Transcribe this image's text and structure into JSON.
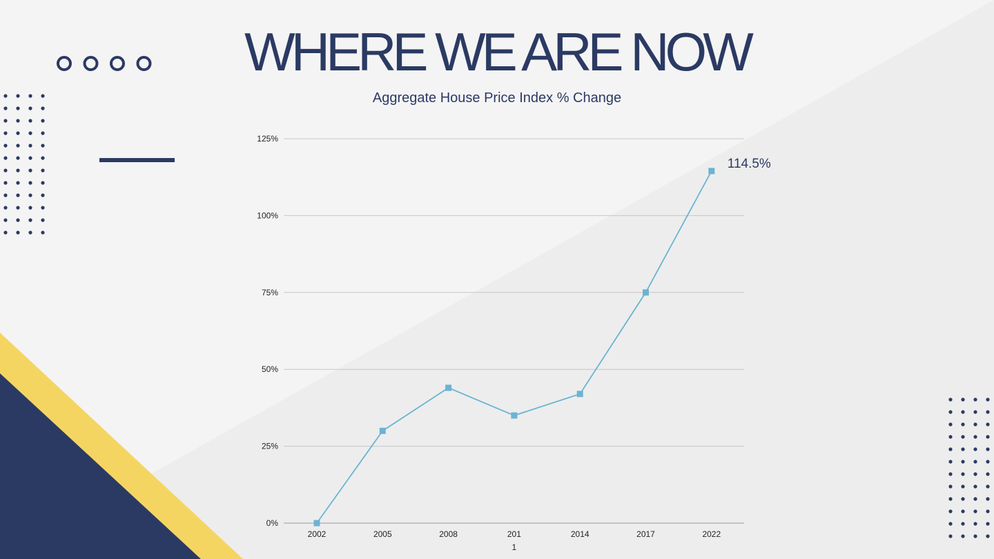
{
  "slide": {
    "title": "WHERE WE ARE NOW"
  },
  "colors": {
    "navy": "#2b3a63",
    "yellow": "#f5d562",
    "line": "#6ab4d2",
    "grid": "#c7c7c7",
    "background": "#f4f4f4",
    "background_shade": "#ececec"
  },
  "decorations": {
    "ring_count": 4,
    "dot_grid_left": {
      "cols": 4,
      "rows": 12
    },
    "dot_grid_right": {
      "cols": 4,
      "rows": 12
    }
  },
  "chart_data": {
    "type": "line",
    "title": "Aggregate House Price Index % Change",
    "xlabel": "",
    "ylabel": "",
    "categories": [
      "2002",
      "2005",
      "2008",
      "201\n1",
      "2014",
      "2017",
      "2022"
    ],
    "series": [
      {
        "values": [
          0,
          30,
          44,
          35,
          42,
          75,
          114.5
        ]
      }
    ],
    "y_ticks": [
      "0%",
      "25%",
      "50%",
      "75%",
      "100%",
      "125%"
    ],
    "ylim": [
      0,
      125
    ],
    "grid": true,
    "legend": "none",
    "annotations": [
      {
        "category_index": 6,
        "text": "114.5%"
      }
    ],
    "marker": "square"
  }
}
